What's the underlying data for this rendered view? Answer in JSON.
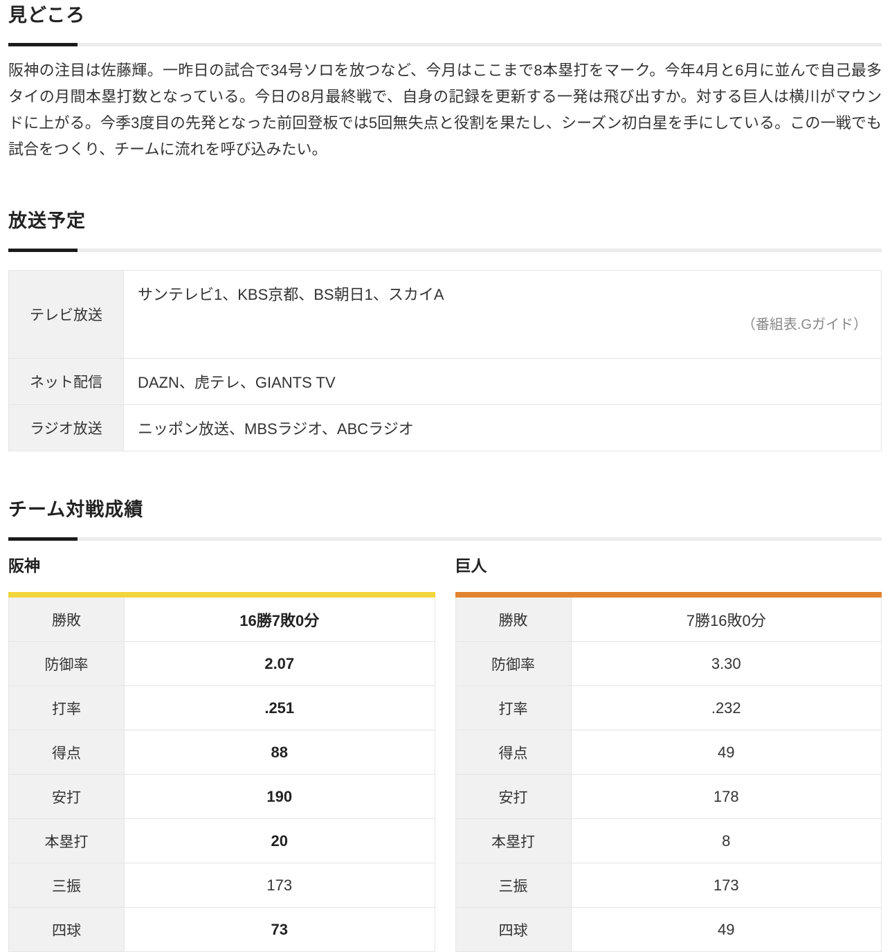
{
  "page": {
    "sections": {
      "highlights": {
        "title": "見どころ",
        "body": "阪神の注目は佐藤輝。一昨日の試合で34号ソロを放つなど、今月はここまで8本塁打をマーク。今年4月と6月に並んで自己最多タイの月間本塁打数となっている。今日の8月最終戦で、自身の記録を更新する一発は飛び出すか。対する巨人は横川がマウンドに上がる。今季3度目の先発となった前回登板では5回無失点と役割を果たし、シーズン初白星を手にしている。この一戦でも試合をつくり、チームに流れを呼び込みたい。"
      },
      "broadcast": {
        "title": "放送予定",
        "rows": [
          {
            "label": "テレビ放送",
            "value": "サンテレビ1、KBS京都、BS朝日1、スカイA",
            "note": "（番組表.Gガイド）"
          },
          {
            "label": "ネット配信",
            "value": "DAZN、虎テレ、GIANTS TV"
          },
          {
            "label": "ラジオ放送",
            "value": "ニッポン放送、MBSラジオ、ABCラジオ"
          }
        ]
      },
      "head_to_head": {
        "title": "チーム対戦成績",
        "stat_labels": [
          "勝敗",
          "防御率",
          "打率",
          "得点",
          "安打",
          "本塁打",
          "三振",
          "四球"
        ],
        "teams": [
          {
            "name": "阪神",
            "accent_color": "#f2d43c",
            "values": [
              "16勝7敗0分",
              "2.07",
              ".251",
              "88",
              "190",
              "20",
              "173",
              "73"
            ],
            "emphasis": [
              true,
              true,
              true,
              true,
              true,
              true,
              false,
              true
            ]
          },
          {
            "name": "巨人",
            "accent_color": "#e2832f",
            "values": [
              "7勝16敗0分",
              "3.30",
              ".232",
              "49",
              "178",
              "8",
              "173",
              "49"
            ],
            "emphasis": [
              false,
              false,
              false,
              false,
              false,
              false,
              false,
              false
            ]
          }
        ]
      }
    }
  }
}
